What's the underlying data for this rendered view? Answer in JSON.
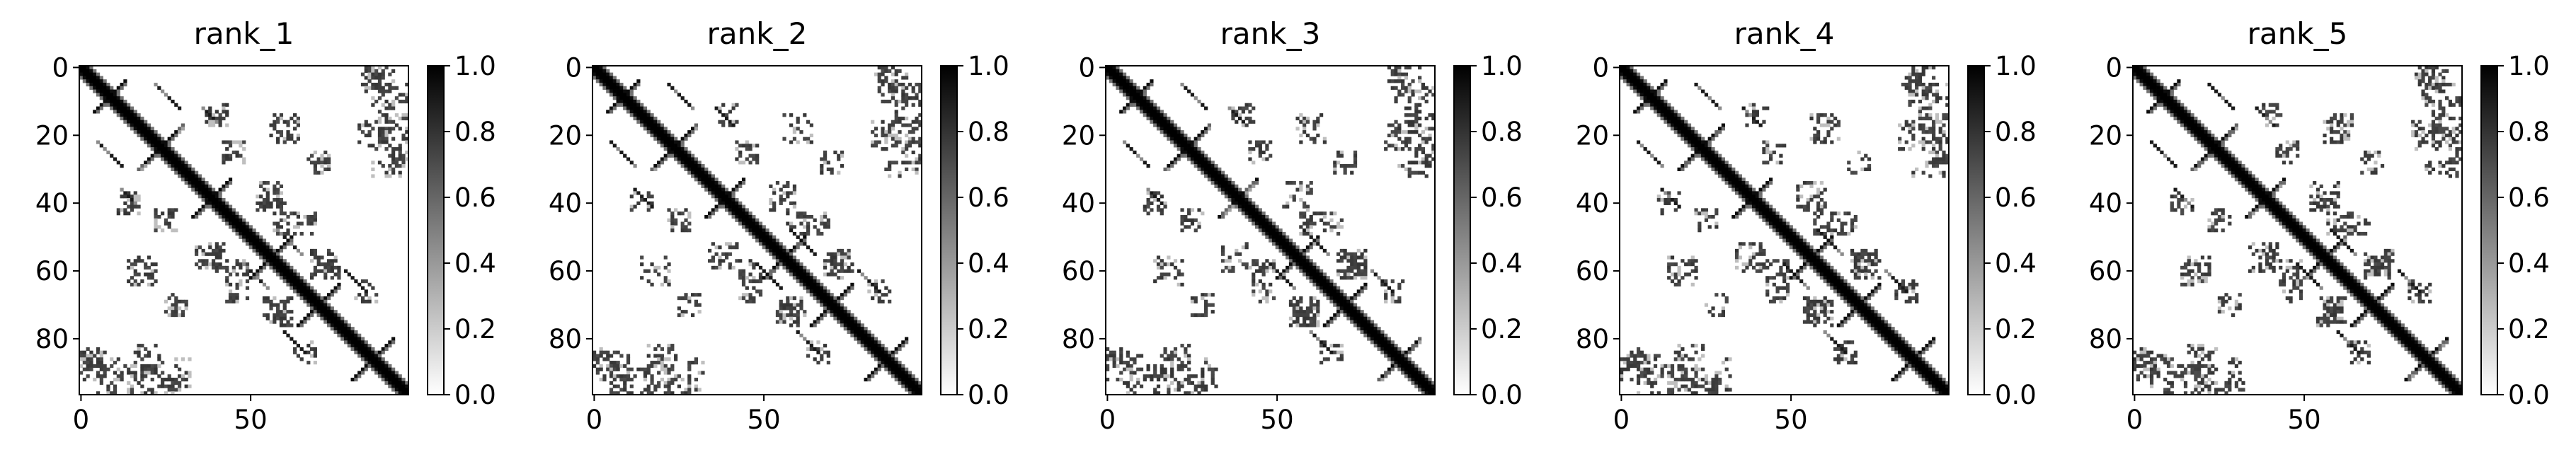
{
  "chart_data": [
    {
      "type": "heatmap",
      "title": "rank_1",
      "colormap": "Greys",
      "x_ticks": [
        0,
        50
      ],
      "y_ticks": [
        0,
        20,
        40,
        60,
        80
      ],
      "matrix_size": 97,
      "value_range": [
        0.0,
        1.0
      ],
      "colorbar_ticks": [
        "0.0",
        "0.2",
        "0.4",
        "0.6",
        "0.8",
        "1.0"
      ],
      "variant": 0
    },
    {
      "type": "heatmap",
      "title": "rank_2",
      "colormap": "Greys",
      "x_ticks": [
        0,
        50
      ],
      "y_ticks": [
        0,
        20,
        40,
        60,
        80
      ],
      "matrix_size": 97,
      "value_range": [
        0.0,
        1.0
      ],
      "colorbar_ticks": [
        "0.0",
        "0.2",
        "0.4",
        "0.6",
        "0.8",
        "1.0"
      ],
      "variant": 1
    },
    {
      "type": "heatmap",
      "title": "rank_3",
      "colormap": "Greys",
      "x_ticks": [
        0,
        50
      ],
      "y_ticks": [
        0,
        20,
        40,
        60,
        80
      ],
      "matrix_size": 97,
      "value_range": [
        0.0,
        1.0
      ],
      "colorbar_ticks": [
        "0.0",
        "0.2",
        "0.4",
        "0.6",
        "0.8",
        "1.0"
      ],
      "variant": 2
    },
    {
      "type": "heatmap",
      "title": "rank_4",
      "colormap": "Greys",
      "x_ticks": [
        0,
        50
      ],
      "y_ticks": [
        0,
        20,
        40,
        60,
        80
      ],
      "matrix_size": 97,
      "value_range": [
        0.0,
        1.0
      ],
      "colorbar_ticks": [
        "0.0",
        "0.2",
        "0.4",
        "0.6",
        "0.8",
        "1.0"
      ],
      "variant": 3
    },
    {
      "type": "heatmap",
      "title": "rank_5",
      "colormap": "Greys",
      "x_ticks": [
        0,
        50
      ],
      "y_ticks": [
        0,
        20,
        40,
        60,
        80
      ],
      "matrix_size": 97,
      "value_range": [
        0.0,
        1.0
      ],
      "colorbar_ticks": [
        "0.0",
        "0.2",
        "0.4",
        "0.6",
        "0.8",
        "1.0"
      ],
      "variant": 4
    }
  ],
  "colors": {
    "high": "#000000",
    "low": "#ffffff",
    "axis": "#000000"
  }
}
